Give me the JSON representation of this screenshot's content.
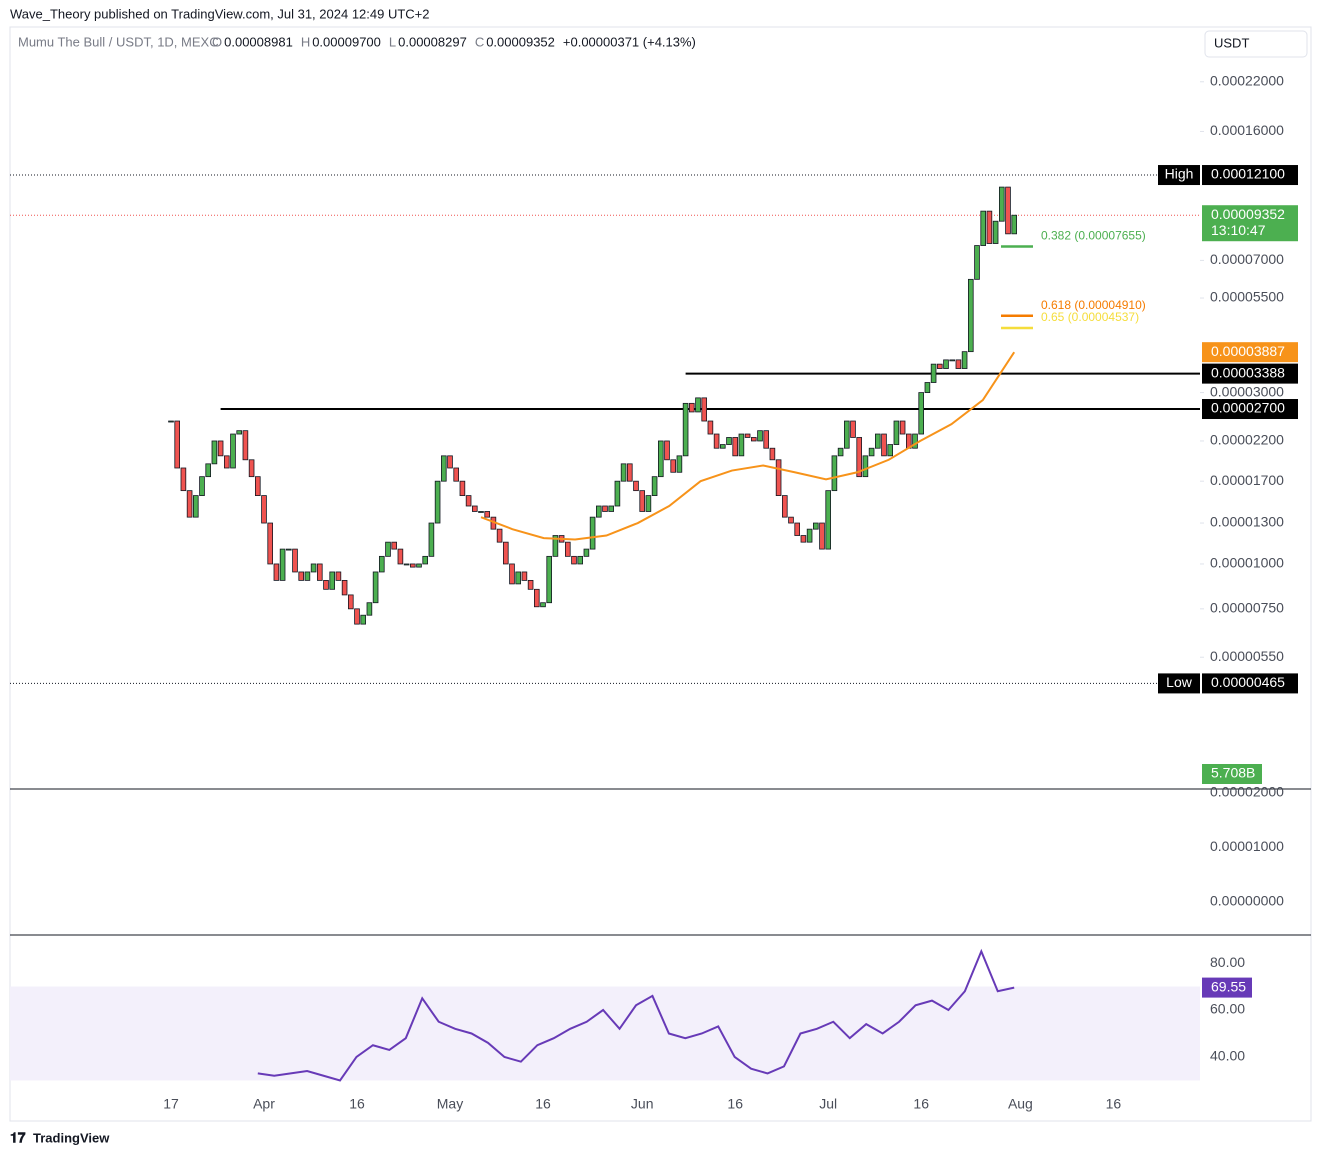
{
  "header": {
    "publisher": "Wave_Theory published on TradingView.com, Jul 31, 2024 12:49 UTC+2",
    "footer": "TradingView",
    "currency_button": "USDT"
  },
  "chart_data": {
    "type": "candlestick",
    "symbol": "Mumu The Bull / USDT, 1D, MEXC",
    "ohlc": [
      {
        "key": "O",
        "value": "0.00008981"
      },
      {
        "key": "H",
        "value": "0.00009700"
      },
      {
        "key": "L",
        "value": "0.00008297"
      },
      {
        "key": "C",
        "value": "0.00009352"
      }
    ],
    "change": "+0.00000371 (+4.13%)",
    "up_color": "#4caf50",
    "down_color": "#ef5350",
    "ma_color": "#f7931a",
    "log_scale": true,
    "ylim": [
      2.348e-06,
      0.0003066
    ],
    "yticks": [
      {
        "value": 0.00022,
        "label": "0.00022000"
      },
      {
        "value": 0.00016,
        "label": "0.00016000"
      },
      {
        "value": 7e-05,
        "label": "0.00007000"
      },
      {
        "value": 5.5e-05,
        "label": "0.00005500"
      },
      {
        "value": 3e-05,
        "label": "0.00003000"
      },
      {
        "value": 2.2e-05,
        "label": "0.00002200"
      },
      {
        "value": 1.7e-05,
        "label": "0.00001700"
      },
      {
        "value": 1.3e-05,
        "label": "0.00001300"
      },
      {
        "value": 1e-05,
        "label": "0.00001000"
      },
      {
        "value": 7.5e-06,
        "label": "0.00000750"
      },
      {
        "value": 5.5e-06,
        "label": "0.00000550"
      }
    ],
    "xticks": [
      {
        "value": 0,
        "label": "17"
      },
      {
        "value": 15,
        "label": "Apr"
      },
      {
        "value": 30,
        "label": "16"
      },
      {
        "value": 45,
        "label": "May"
      },
      {
        "value": 60,
        "label": "16"
      },
      {
        "value": 76,
        "label": "Jun"
      },
      {
        "value": 91,
        "label": "16"
      },
      {
        "value": 106,
        "label": "Jul"
      },
      {
        "value": 121,
        "label": "16"
      },
      {
        "value": 137,
        "label": "Aug"
      },
      {
        "value": 152,
        "label": "16"
      }
    ],
    "closes": [
      2.5e-05,
      1.85e-05,
      1.6e-05,
      1.35e-05,
      1.55e-05,
      1.75e-05,
      1.9e-05,
      2.2e-05,
      2e-05,
      1.85e-05,
      2.3e-05,
      2.35e-05,
      1.95e-05,
      1.75e-05,
      1.55e-05,
      1.3e-05,
      1e-05,
      9e-06,
      1.1e-05,
      1.1e-05,
      9.5e-06,
      9e-06,
      9.5e-06,
      1e-05,
      9e-06,
      8.5e-06,
      9.5e-06,
      9e-06,
      8.2e-06,
      7.5e-06,
      6.8e-06,
      7.2e-06,
      7.8e-06,
      9.5e-06,
      1.05e-05,
      1.15e-05,
      1.1e-05,
      1e-05,
      1e-05,
      9.8e-06,
      1e-05,
      1.05e-05,
      1.3e-05,
      1.7e-05,
      2e-05,
      1.85e-05,
      1.7e-05,
      1.55e-05,
      1.45e-05,
      1.4e-05,
      1.4e-05,
      1.35e-05,
      1.25e-05,
      1.15e-05,
      1e-05,
      8.8e-06,
      9.5e-06,
      9e-06,
      8.5e-06,
      7.6e-06,
      7.8e-06,
      1.05e-05,
      1.2e-05,
      1.15e-05,
      1.05e-05,
      1e-05,
      1.05e-05,
      1.1e-05,
      1.35e-05,
      1.45e-05,
      1.4e-05,
      1.45e-05,
      1.7e-05,
      1.9e-05,
      1.7e-05,
      1.6e-05,
      1.4e-05,
      1.55e-05,
      1.75e-05,
      2.2e-05,
      1.95e-05,
      1.8e-05,
      2e-05,
      2.8e-05,
      2.65e-05,
      2.9e-05,
      2.5e-05,
      2.3e-05,
      2.1e-05,
      2.15e-05,
      2.25e-05,
      2e-05,
      2.3e-05,
      2.25e-05,
      2.2e-05,
      2.35e-05,
      2.1e-05,
      1.95e-05,
      1.55e-05,
      1.35e-05,
      1.3e-05,
      1.2e-05,
      1.15e-05,
      1.25e-05,
      1.3e-05,
      1.1e-05,
      1.6e-05,
      2e-05,
      2.1e-05,
      2.5e-05,
      2.25e-05,
      1.75e-05,
      2e-05,
      2.1e-05,
      2.3e-05,
      2e-05,
      2.15e-05,
      2.5e-05,
      2.3e-05,
      2.1e-05,
      2.3e-05,
      3e-05,
      3.2e-05,
      3.6e-05,
      3.5e-05,
      3.7e-05,
      3.7e-05,
      3.5e-05,
      3.9e-05,
      6.2e-05,
      7.7e-05,
      9.6e-05,
      7.8e-05,
      9e-05,
      0.000112,
      8.3e-05,
      9.352e-05
    ],
    "ma": [
      1.35e-05,
      1.25e-05,
      1.18e-05,
      1.17e-05,
      1.2e-05,
      1.3e-05,
      1.45e-05,
      1.7e-05,
      1.82e-05,
      1.88e-05,
      1.8e-05,
      1.72e-05,
      1.8e-05,
      1.95e-05,
      2.2e-05,
      2.45e-05,
      2.86e-05,
      3.887e-05
    ],
    "ma_start": 50,
    "high": {
      "name": "High",
      "value": 0.000121,
      "label": "0.00012100"
    },
    "low": {
      "name": "Low",
      "value": 4.65e-06,
      "label": "0.00000465"
    },
    "last": {
      "value": 9.352e-05,
      "label": "0.00009352",
      "countdown": "13:10:47"
    },
    "ma_last": {
      "value": 3.887e-05,
      "label": "0.00003887"
    },
    "levels": [
      {
        "value": 3.388e-05,
        "label": "0.00003388",
        "from": 83
      },
      {
        "value": 2.7e-05,
        "label": "0.00002700",
        "from": 8
      }
    ],
    "fib": [
      {
        "value": 7.655e-05,
        "label": "0.382 (0.00007655)",
        "color": "#4caf50"
      },
      {
        "value": 4.91e-05,
        "label": "0.618 (0.00004910)",
        "color": "#f57c00"
      },
      {
        "value": 4.537e-05,
        "label": "0.65 (0.00004537)",
        "color": "#f5dd3b"
      }
    ],
    "volume_label": "5.708B",
    "macd_ticks": [
      "0.00002000",
      "0.00001000",
      "0.00000000"
    ],
    "rsi": {
      "color": "#673ab7",
      "ylim": [
        23.8,
        91.1
      ],
      "band": [
        30,
        70
      ],
      "start": 14,
      "yticks": [
        {
          "value": 80,
          "label": "80.00"
        },
        {
          "value": 60,
          "label": "60.00"
        },
        {
          "value": 40,
          "label": "40.00"
        }
      ],
      "values": [
        33,
        32,
        33,
        34,
        32,
        30,
        40,
        45,
        43,
        48,
        65,
        55,
        52,
        50,
        46,
        40,
        38,
        45,
        48,
        52,
        55,
        60,
        52,
        62,
        66,
        50,
        48,
        50,
        53,
        40,
        35,
        33,
        36,
        50,
        52,
        55,
        48,
        54,
        50,
        55,
        62,
        64,
        60,
        68,
        85,
        68,
        69.55
      ],
      "last_label": "69.55"
    }
  }
}
